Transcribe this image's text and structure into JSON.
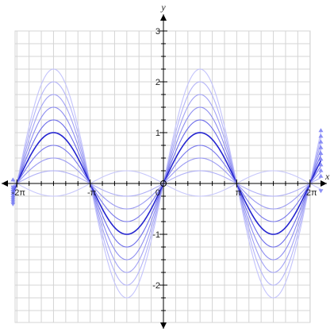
{
  "chart_data": {
    "type": "line",
    "title": "",
    "xlabel": "x",
    "ylabel": "y",
    "xlim": [
      -6.6,
      6.6
    ],
    "ylim": [
      -3,
      3
    ],
    "x_ticks": [
      {
        "value": -6.283185,
        "label": "-2π"
      },
      {
        "value": -3.141593,
        "label": "-π"
      },
      {
        "value": 3.141593,
        "label": "π"
      },
      {
        "value": 6.283185,
        "label": "2π"
      }
    ],
    "y_ticks": [
      {
        "value": 3,
        "label": "3"
      },
      {
        "value": 2,
        "label": "2"
      },
      {
        "value": 1,
        "label": "1"
      },
      {
        "value": -1,
        "label": "-1"
      },
      {
        "value": -2,
        "label": "-2"
      }
    ],
    "origin_label": "0",
    "grid": true,
    "function": "y = A·sin(x)",
    "series": [
      {
        "amplitude": 2.25,
        "color": "#c3c3fb"
      },
      {
        "amplitude": 2.0,
        "color": "#b4b4f8"
      },
      {
        "amplitude": 1.75,
        "color": "#a2a2f4"
      },
      {
        "amplitude": 1.5,
        "color": "#8e8ef0"
      },
      {
        "amplitude": 1.25,
        "color": "#6c6cea"
      },
      {
        "amplitude": 1.0,
        "color": "#2424d0"
      },
      {
        "amplitude": 0.75,
        "color": "#7878ec"
      },
      {
        "amplitude": 0.5,
        "color": "#9a9af2"
      },
      {
        "amplitude": 0.25,
        "color": "#b0b0f6"
      },
      {
        "amplitude": -0.25,
        "color": "#c8c8fb"
      }
    ],
    "colors": {
      "grid": "#d4d4d4",
      "axis": "#000000",
      "arrow": "#6f74f2"
    }
  }
}
